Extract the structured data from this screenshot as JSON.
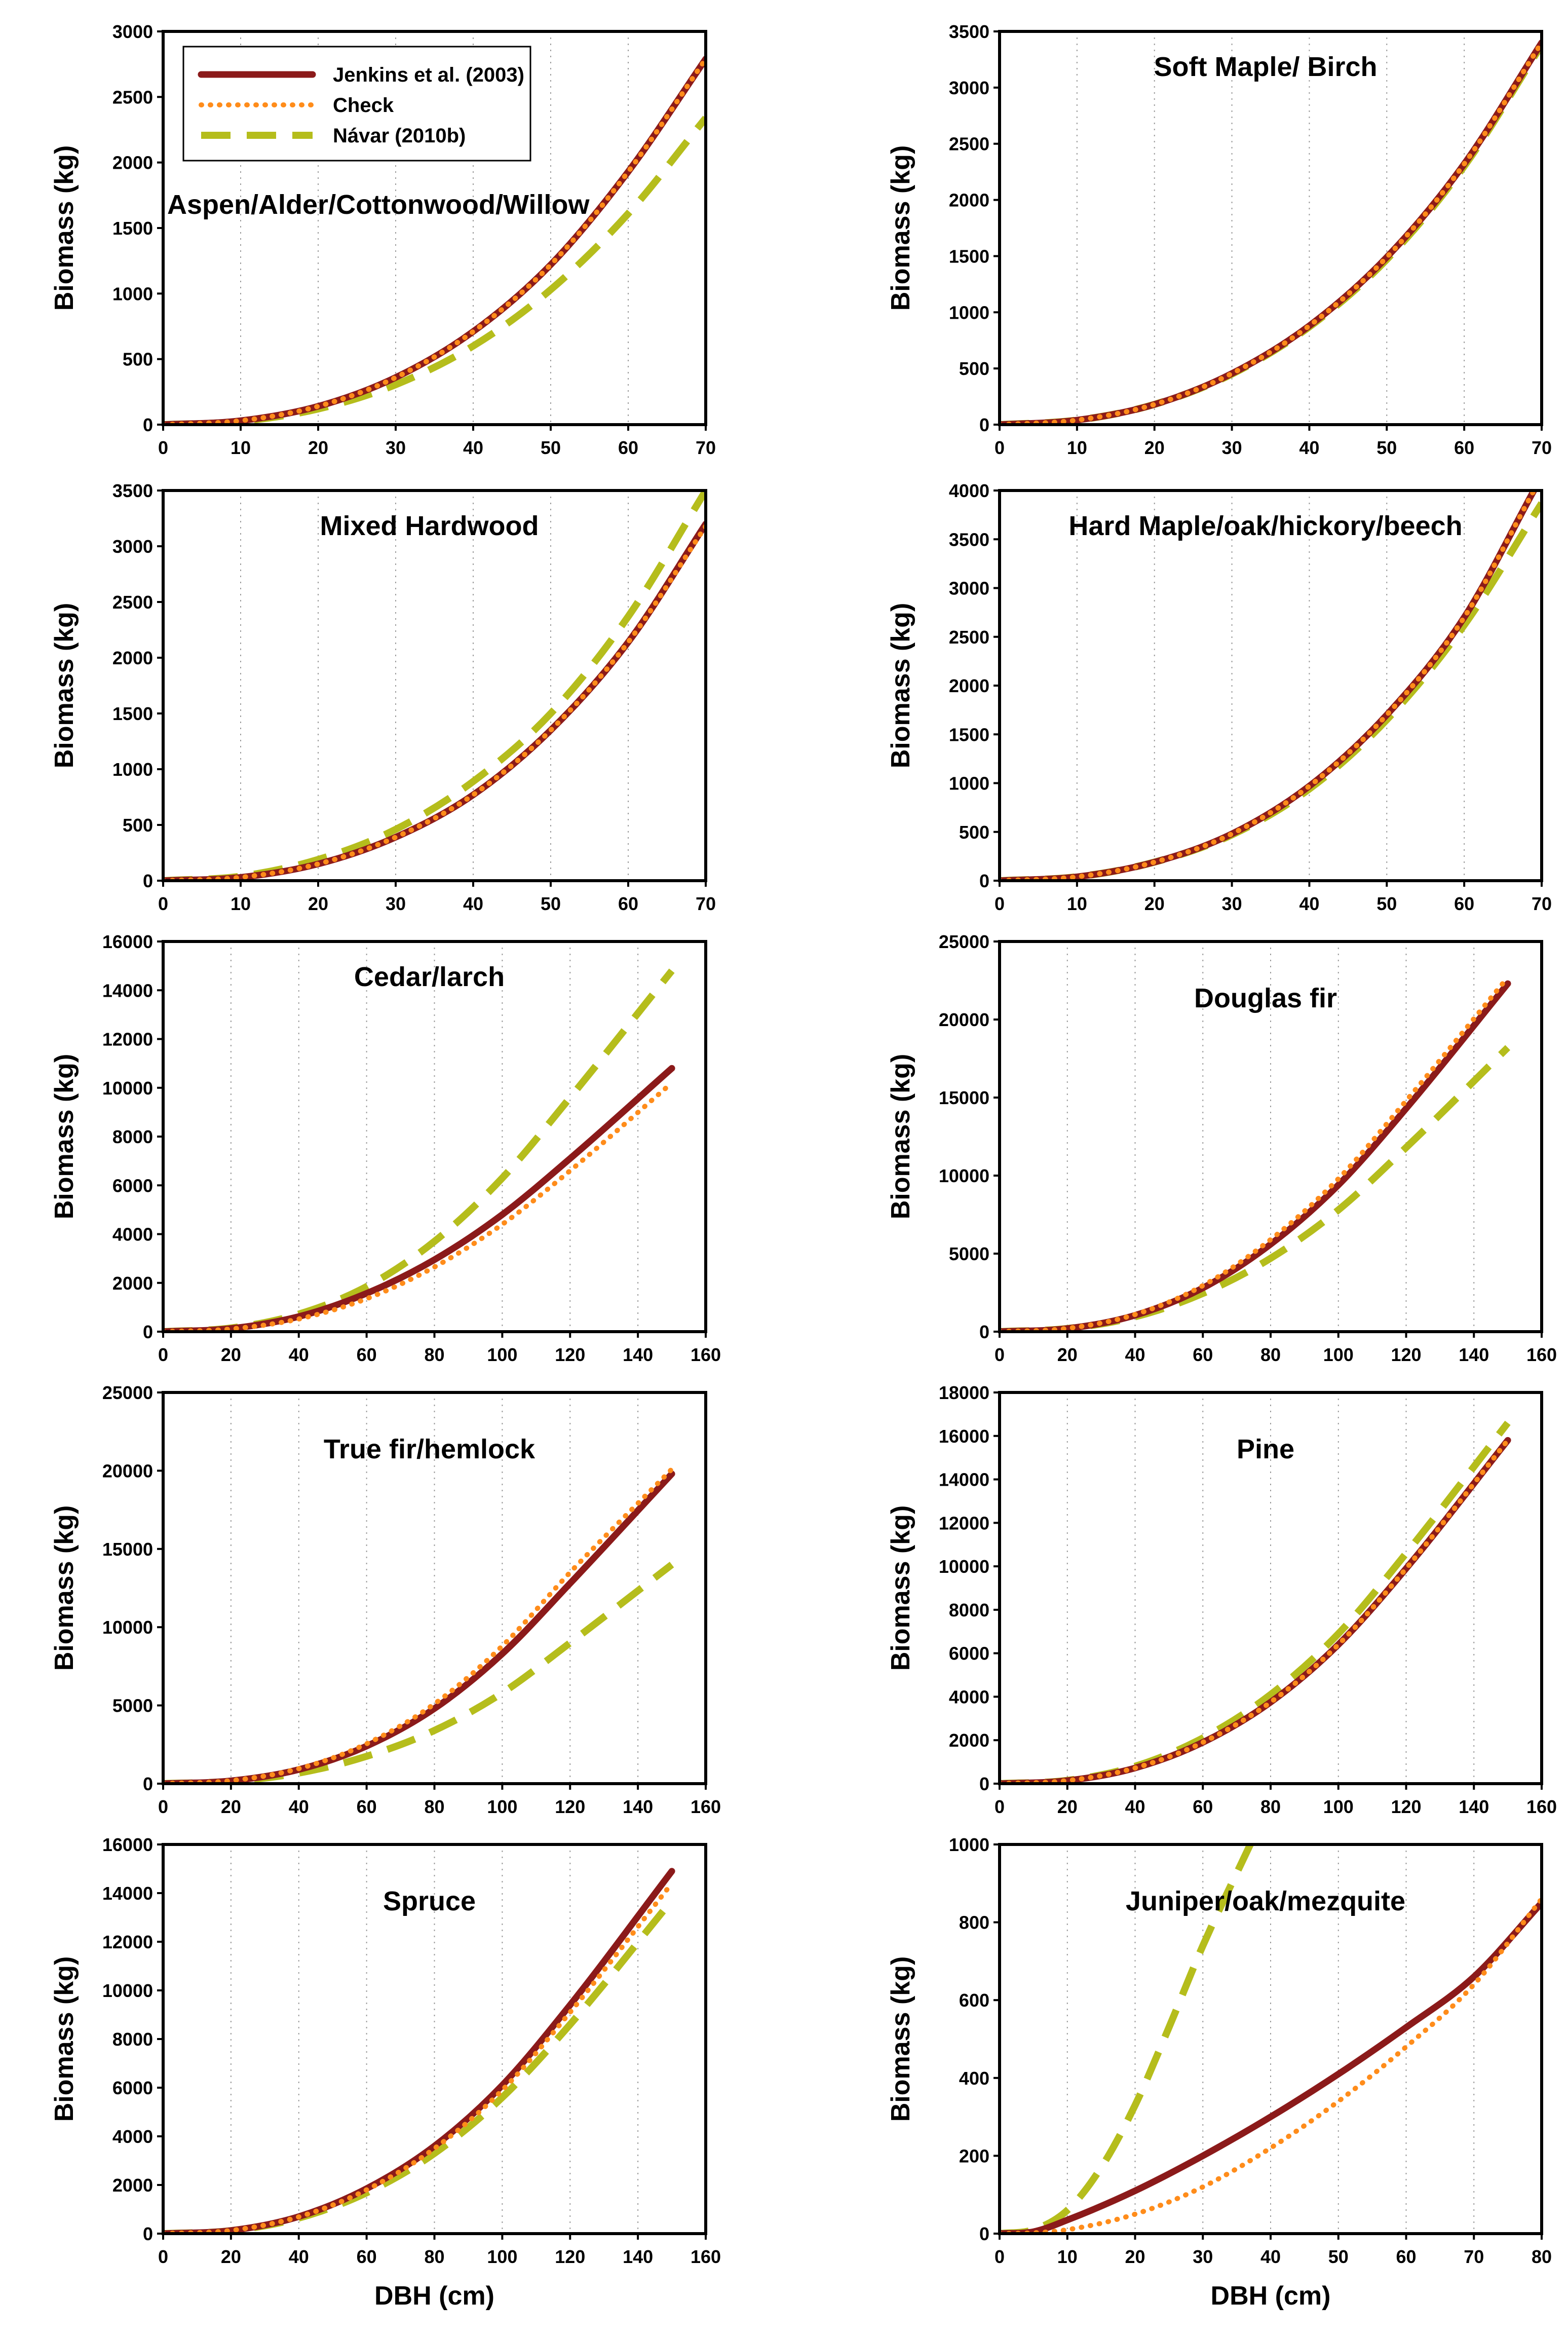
{
  "chart_data": [
    {
      "type": "line",
      "title": "Aspen/Alder/Cottonwood/Willow",
      "xlabel": "",
      "ylabel": "Biomass (kg)",
      "xlim": [
        0,
        70
      ],
      "ylim": [
        0,
        3000
      ],
      "xticks": [
        0,
        10,
        20,
        30,
        40,
        50,
        60,
        70
      ],
      "yticks": [
        0,
        500,
        1000,
        1500,
        2000,
        2500,
        3000
      ],
      "title_position": "upper-left",
      "legend": {
        "position": "top-left",
        "entries": [
          "Jenkins et al. (2003)",
          "Check",
          "Návar (2010b)"
        ]
      },
      "series": [
        {
          "name": "Jenkins et al. (2003)",
          "style": "solid",
          "color": "#8b1a1a",
          "x": [
            0,
            10,
            20,
            30,
            40,
            50,
            60,
            70
          ],
          "values": [
            0,
            30,
            140,
            360,
            710,
            1220,
            1930,
            2790
          ]
        },
        {
          "name": "Check",
          "style": "dotted",
          "color": "#ff8c1a",
          "x": [
            0,
            10,
            20,
            30,
            40,
            50,
            60,
            70
          ],
          "values": [
            0,
            30,
            140,
            360,
            710,
            1220,
            1930,
            2790
          ]
        },
        {
          "name": "Návar (2010b)",
          "style": "dashed",
          "color": "#b5bd1c",
          "x": [
            0,
            10,
            20,
            30,
            40,
            50,
            60,
            70
          ],
          "values": [
            0,
            25,
            120,
            305,
            600,
            1030,
            1610,
            2340
          ]
        }
      ]
    },
    {
      "type": "line",
      "title": "Soft Maple/ Birch",
      "xlabel": "",
      "ylabel": "Biomass (kg)",
      "xlim": [
        0,
        70
      ],
      "ylim": [
        0,
        3500
      ],
      "xticks": [
        0,
        10,
        20,
        30,
        40,
        50,
        60,
        70
      ],
      "yticks": [
        0,
        500,
        1000,
        1500,
        2000,
        2500,
        3000,
        3500
      ],
      "title_position": "top-center",
      "series": [
        {
          "name": "Jenkins et al. (2003)",
          "style": "solid",
          "color": "#8b1a1a",
          "x": [
            0,
            10,
            20,
            30,
            40,
            50,
            60,
            70
          ],
          "values": [
            0,
            40,
            180,
            455,
            880,
            1490,
            2320,
            3400
          ]
        },
        {
          "name": "Check",
          "style": "dotted",
          "color": "#ff8c1a",
          "x": [
            0,
            10,
            20,
            30,
            40,
            50,
            60,
            70
          ],
          "values": [
            0,
            40,
            180,
            455,
            880,
            1490,
            2320,
            3400
          ]
        },
        {
          "name": "Návar (2010b)",
          "style": "dashed",
          "color": "#b5bd1c",
          "x": [
            0,
            10,
            20,
            30,
            40,
            50,
            60,
            70
          ],
          "values": [
            0,
            40,
            180,
            450,
            870,
            1470,
            2300,
            3380
          ]
        }
      ]
    },
    {
      "type": "line",
      "title": "Mixed Hardwood",
      "xlabel": "",
      "ylabel": "Biomass (kg)",
      "xlim": [
        0,
        70
      ],
      "ylim": [
        0,
        3500
      ],
      "xticks": [
        0,
        10,
        20,
        30,
        40,
        50,
        60,
        70
      ],
      "yticks": [
        0,
        500,
        1000,
        1500,
        2000,
        2500,
        3000,
        3500
      ],
      "title_position": "top-center",
      "series": [
        {
          "name": "Jenkins et al. (2003)",
          "style": "solid",
          "color": "#8b1a1a",
          "x": [
            0,
            10,
            20,
            30,
            40,
            50,
            60,
            70
          ],
          "values": [
            0,
            30,
            150,
            390,
            770,
            1350,
            2140,
            3200
          ]
        },
        {
          "name": "Check",
          "style": "dotted",
          "color": "#ff8c1a",
          "x": [
            0,
            10,
            20,
            30,
            40,
            50,
            60,
            70
          ],
          "values": [
            0,
            30,
            150,
            390,
            770,
            1350,
            2140,
            3180
          ]
        },
        {
          "name": "Návar (2010b)",
          "style": "dashed",
          "color": "#b5bd1c",
          "x": [
            0,
            10,
            20,
            30,
            40,
            50,
            60,
            70
          ],
          "values": [
            0,
            40,
            190,
            460,
            890,
            1500,
            2370,
            3500
          ]
        }
      ]
    },
    {
      "type": "line",
      "title": "Hard Maple/oak/hickory/beech",
      "xlabel": "",
      "ylabel": "Biomass (kg)",
      "xlim": [
        0,
        70
      ],
      "ylim": [
        0,
        4000
      ],
      "xticks": [
        0,
        10,
        20,
        30,
        40,
        50,
        60,
        70
      ],
      "yticks": [
        0,
        500,
        1000,
        1500,
        2000,
        2500,
        3000,
        3500,
        4000
      ],
      "title_position": "top-center",
      "series": [
        {
          "name": "Jenkins et al. (2003)",
          "style": "solid",
          "color": "#8b1a1a",
          "x": [
            0,
            10,
            20,
            30,
            40,
            50,
            60,
            69
          ],
          "values": [
            0,
            40,
            190,
            480,
            970,
            1700,
            2700,
            4000
          ]
        },
        {
          "name": "Check",
          "style": "dotted",
          "color": "#ff8c1a",
          "x": [
            0,
            10,
            20,
            30,
            40,
            50,
            60,
            69
          ],
          "values": [
            0,
            40,
            190,
            480,
            970,
            1700,
            2700,
            4000
          ]
        },
        {
          "name": "Návar (2010b)",
          "style": "dashed",
          "color": "#b5bd1c",
          "x": [
            0,
            10,
            20,
            30,
            40,
            50,
            60,
            70
          ],
          "values": [
            0,
            40,
            190,
            470,
            940,
            1650,
            2620,
            3870
          ]
        }
      ]
    },
    {
      "type": "line",
      "title": "Cedar/larch",
      "xlabel": "",
      "ylabel": "Biomass (kg)",
      "xlim": [
        0,
        160
      ],
      "ylim": [
        0,
        16000
      ],
      "xticks": [
        0,
        20,
        40,
        60,
        80,
        100,
        120,
        140,
        160
      ],
      "yticks": [
        0,
        2000,
        4000,
        6000,
        8000,
        10000,
        12000,
        14000,
        16000
      ],
      "title_position": "top-center",
      "series": [
        {
          "name": "Jenkins et al. (2003)",
          "style": "solid",
          "color": "#8b1a1a",
          "x": [
            0,
            20,
            40,
            60,
            80,
            100,
            120,
            150
          ],
          "values": [
            0,
            130,
            620,
            1570,
            2950,
            4800,
            7100,
            10800
          ]
        },
        {
          "name": "Check",
          "style": "dotted",
          "color": "#ff8c1a",
          "x": [
            0,
            20,
            40,
            60,
            80,
            100,
            120,
            150
          ],
          "values": [
            0,
            110,
            520,
            1350,
            2650,
            4400,
            6600,
            10200
          ]
        },
        {
          "name": "Návar (2010b)",
          "style": "dashed",
          "color": "#b5bd1c",
          "x": [
            0,
            20,
            40,
            60,
            80,
            100,
            120,
            150
          ],
          "values": [
            0,
            150,
            720,
            1850,
            3700,
            6300,
            9600,
            14800
          ]
        }
      ]
    },
    {
      "type": "line",
      "title": "Douglas fir",
      "xlabel": "",
      "ylabel": "Biomass (kg)",
      "xlim": [
        0,
        160
      ],
      "ylim": [
        0,
        25000
      ],
      "xticks": [
        0,
        20,
        40,
        60,
        80,
        100,
        120,
        140,
        160
      ],
      "yticks": [
        0,
        5000,
        10000,
        15000,
        20000,
        25000
      ],
      "title_position": "top-center",
      "series": [
        {
          "name": "Jenkins et al. (2003)",
          "style": "solid",
          "color": "#8b1a1a",
          "x": [
            0,
            20,
            40,
            60,
            80,
            100,
            120,
            150
          ],
          "values": [
            0,
            200,
            1050,
            2800,
            5600,
            9400,
            14300,
            22300
          ]
        },
        {
          "name": "Check",
          "style": "dotted",
          "color": "#ff8c1a",
          "x": [
            0,
            20,
            40,
            60,
            80,
            100,
            120,
            150
          ],
          "values": [
            0,
            210,
            1100,
            2950,
            5900,
            9800,
            14800,
            22700
          ]
        },
        {
          "name": "Návar (2010b)",
          "style": "dashed",
          "color": "#b5bd1c",
          "x": [
            0,
            20,
            40,
            60,
            80,
            100,
            120,
            150
          ],
          "values": [
            0,
            200,
            950,
            2450,
            4700,
            7800,
            11800,
            18200
          ]
        }
      ]
    },
    {
      "type": "line",
      "title": "True fir/hemlock",
      "xlabel": "",
      "ylabel": "Biomass (kg)",
      "xlim": [
        0,
        160
      ],
      "ylim": [
        0,
        25000
      ],
      "xticks": [
        0,
        20,
        40,
        60,
        80,
        100,
        120,
        140,
        160
      ],
      "yticks": [
        0,
        5000,
        10000,
        15000,
        20000,
        25000
      ],
      "title_position": "top-center",
      "series": [
        {
          "name": "Jenkins et al. (2003)",
          "style": "solid",
          "color": "#8b1a1a",
          "x": [
            0,
            20,
            40,
            60,
            80,
            100,
            120,
            150
          ],
          "values": [
            0,
            180,
            900,
            2400,
            4800,
            8300,
            12800,
            19800
          ]
        },
        {
          "name": "Check",
          "style": "dotted",
          "color": "#ff8c1a",
          "x": [
            0,
            20,
            40,
            60,
            80,
            100,
            120,
            150
          ],
          "values": [
            0,
            190,
            960,
            2550,
            5100,
            8800,
            13500,
            20100
          ]
        },
        {
          "name": "Návar (2010b)",
          "style": "dashed",
          "color": "#b5bd1c",
          "x": [
            0,
            20,
            40,
            60,
            80,
            100,
            120,
            150
          ],
          "values": [
            0,
            150,
            680,
            1750,
            3400,
            5800,
            9000,
            14000
          ]
        }
      ]
    },
    {
      "type": "line",
      "title": "Pine",
      "xlabel": "",
      "ylabel": "Biomass (kg)",
      "xlim": [
        0,
        160
      ],
      "ylim": [
        0,
        18000
      ],
      "xticks": [
        0,
        20,
        40,
        60,
        80,
        100,
        120,
        140,
        160
      ],
      "yticks": [
        0,
        2000,
        4000,
        6000,
        8000,
        10000,
        12000,
        14000,
        16000,
        18000
      ],
      "title_position": "top-center",
      "series": [
        {
          "name": "Jenkins et al. (2003)",
          "style": "solid",
          "color": "#8b1a1a",
          "x": [
            0,
            20,
            40,
            60,
            80,
            100,
            120,
            150
          ],
          "values": [
            0,
            140,
            720,
            1900,
            3750,
            6400,
            9900,
            15800
          ]
        },
        {
          "name": "Check",
          "style": "dotted",
          "color": "#ff8c1a",
          "x": [
            0,
            20,
            40,
            60,
            80,
            100,
            120,
            150
          ],
          "values": [
            0,
            140,
            720,
            1900,
            3750,
            6400,
            9900,
            15800
          ]
        },
        {
          "name": "Návar (2010b)",
          "style": "dashed",
          "color": "#b5bd1c",
          "x": [
            0,
            20,
            40,
            60,
            80,
            100,
            120,
            150
          ],
          "values": [
            0,
            150,
            800,
            2100,
            4100,
            6900,
            10600,
            16600
          ]
        }
      ]
    },
    {
      "type": "line",
      "title": "Spruce",
      "xlabel": "DBH (cm)",
      "ylabel": "Biomass (kg)",
      "xlim": [
        0,
        160
      ],
      "ylim": [
        0,
        16000
      ],
      "xticks": [
        0,
        20,
        40,
        60,
        80,
        100,
        120,
        140,
        160
      ],
      "yticks": [
        0,
        2000,
        4000,
        6000,
        8000,
        10000,
        12000,
        14000,
        16000
      ],
      "title_position": "top-center",
      "series": [
        {
          "name": "Jenkins et al. (2003)",
          "style": "solid",
          "color": "#8b1a1a",
          "x": [
            0,
            20,
            40,
            60,
            80,
            100,
            120,
            150
          ],
          "values": [
            0,
            130,
            700,
            1850,
            3600,
            6100,
            9400,
            14900
          ]
        },
        {
          "name": "Check",
          "style": "dotted",
          "color": "#ff8c1a",
          "x": [
            0,
            20,
            40,
            60,
            80,
            100,
            120,
            150
          ],
          "values": [
            0,
            130,
            690,
            1800,
            3500,
            5900,
            9100,
            14400
          ]
        },
        {
          "name": "Návar (2010b)",
          "style": "dashed",
          "color": "#b5bd1c",
          "x": [
            0,
            20,
            40,
            60,
            80,
            100,
            120,
            150
          ],
          "values": [
            0,
            120,
            640,
            1680,
            3300,
            5600,
            8600,
            13700
          ]
        }
      ]
    },
    {
      "type": "line",
      "title": "Juniper/oak/mezquite",
      "xlabel": "DBH (cm)",
      "ylabel": "Biomass (kg)",
      "xlim": [
        0,
        80
      ],
      "ylim": [
        0,
        1000
      ],
      "xticks": [
        0,
        10,
        20,
        30,
        40,
        50,
        60,
        70,
        80
      ],
      "yticks": [
        0,
        200,
        400,
        600,
        800,
        1000
      ],
      "title_position": "top-center",
      "series": [
        {
          "name": "Jenkins et al. (2003)",
          "style": "solid",
          "color": "#8b1a1a",
          "x": [
            0,
            5,
            10,
            20,
            30,
            40,
            50,
            60,
            70,
            80
          ],
          "values": [
            0,
            5,
            35,
            110,
            200,
            300,
            410,
            530,
            660,
            850
          ]
        },
        {
          "name": "Check",
          "style": "dotted",
          "color": "#ff8c1a",
          "x": [
            0,
            5,
            10,
            20,
            30,
            40,
            50,
            60,
            70,
            80
          ],
          "values": [
            0,
            2,
            10,
            50,
            120,
            220,
            340,
            480,
            640,
            860
          ]
        },
        {
          "name": "Návar (2010b)",
          "style": "dashed",
          "color": "#b5bd1c",
          "x": [
            0,
            5,
            10,
            15,
            20,
            25,
            30,
            37
          ],
          "values": [
            0,
            10,
            60,
            170,
            330,
            530,
            740,
            1000
          ]
        }
      ]
    }
  ]
}
